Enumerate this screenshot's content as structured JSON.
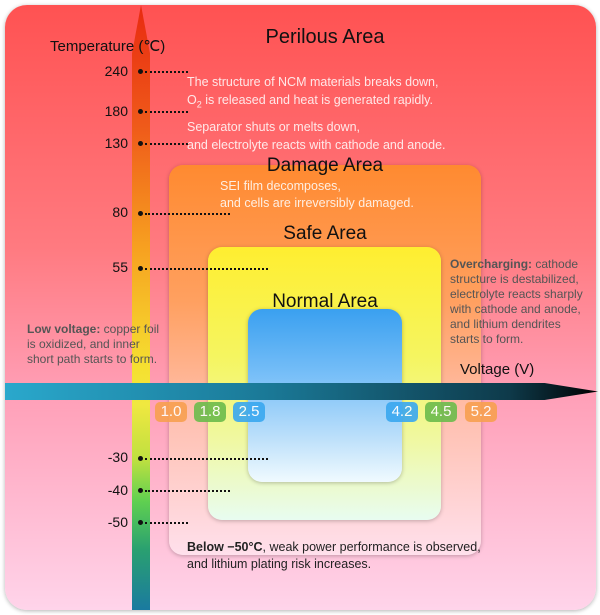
{
  "temperature_axis": {
    "label": "Temperature (℃)",
    "ticks": [
      "240",
      "180",
      "130",
      "80",
      "55",
      "-30",
      "-40",
      "-50"
    ]
  },
  "voltage_axis": {
    "label": "Voltage (V)",
    "badges": [
      {
        "value": "1.0",
        "color": "#f8a050"
      },
      {
        "value": "1.8",
        "color": "#6cbc4c"
      },
      {
        "value": "2.5",
        "color": "#3aa8f0"
      },
      {
        "value": "4.2",
        "color": "#3aa8f0"
      },
      {
        "value": "4.5",
        "color": "#6cbc4c"
      },
      {
        "value": "5.2",
        "color": "#f8a050"
      }
    ]
  },
  "areas": {
    "perilous": {
      "title": "Perilous Area",
      "line1": "The structure of NCM materials breaks down,",
      "line2a": "O",
      "line2sub": "2",
      "line2b": " is released and heat is generated rapidly.",
      "line3": "Separator shuts or melts down,",
      "line4": "and electrolyte reacts with cathode and anode."
    },
    "damage": {
      "title": "Damage Area",
      "line1": "SEI film decomposes,",
      "line2": "and cells are irreversibly damaged."
    },
    "safe": {
      "title": "Safe Area"
    },
    "normal": {
      "title": "Normal Area"
    }
  },
  "notes": {
    "overcharging": {
      "bold": "Overcharging:",
      "rest1": " cathode",
      "line2": "structure is destabilized,",
      "line3": "electrolyte reacts sharply",
      "line4": "with cathode and anode,",
      "line5": "and lithium dendrites",
      "line6": "starts to form."
    },
    "low_voltage": {
      "bold": "Low voltage:",
      "rest1": " copper foil",
      "line2": "is oxidized, and inner",
      "line3": "short path starts to form."
    },
    "low_temp": {
      "bold": "Below −50°C",
      "rest1": ", weak power performance is observed,",
      "line2": "and lithium plating risk increases."
    }
  }
}
